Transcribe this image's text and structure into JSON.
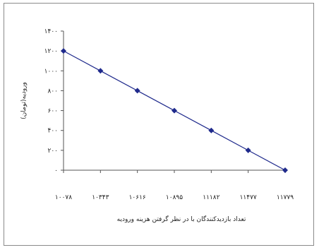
{
  "chart_data": {
    "type": "line",
    "title": "",
    "xlabel": "تعداد بازدیدکنندگان با در نظر گرفتن هزینه ورودیه",
    "ylabel": "ورودیه(تومان)",
    "x": [
      "۱۰۰۷۸",
      "۱۰۳۴۳",
      "۱۰۶۱۶",
      "۱۰۸۹۵",
      "۱۱۱۸۲",
      "۱۱۴۷۷",
      "۱۱۷۷۹"
    ],
    "series": [
      {
        "values": [
          1200,
          1000,
          800,
          600,
          400,
          200,
          0
        ],
        "color": "#1f2a8c"
      }
    ],
    "yticks": [
      0,
      200,
      400,
      600,
      800,
      1000,
      1200,
      1400
    ],
    "ytick_labels": [
      "۰",
      "۲۰۰",
      "۴۰۰",
      "۶۰۰",
      "۸۰۰",
      "۱۰۰۰",
      "۱۲۰۰",
      "۱۴۰۰"
    ],
    "ylim": [
      0,
      1400
    ],
    "grid": false,
    "marker": "diamond"
  }
}
